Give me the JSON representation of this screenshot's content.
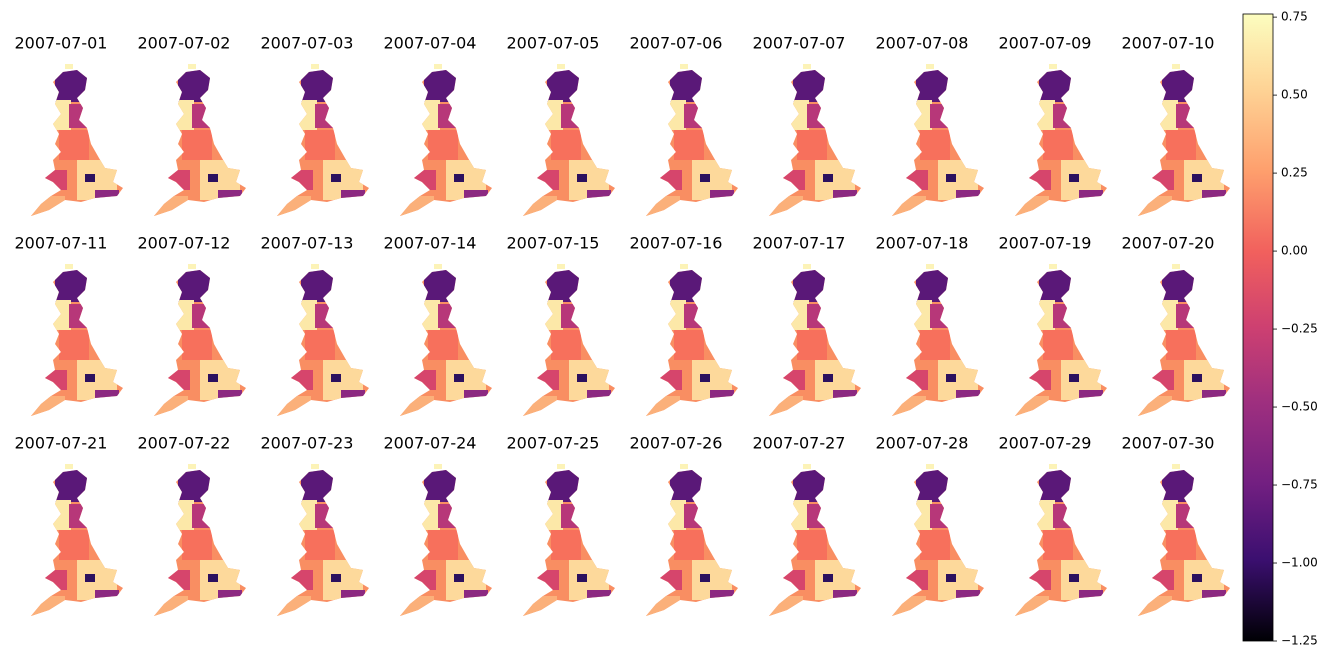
{
  "panels": [
    {
      "title": "2007-07-01"
    },
    {
      "title": "2007-07-02"
    },
    {
      "title": "2007-07-03"
    },
    {
      "title": "2007-07-04"
    },
    {
      "title": "2007-07-05"
    },
    {
      "title": "2007-07-06"
    },
    {
      "title": "2007-07-07"
    },
    {
      "title": "2007-07-08"
    },
    {
      "title": "2007-07-09"
    },
    {
      "title": "2007-07-10"
    },
    {
      "title": "2007-07-11"
    },
    {
      "title": "2007-07-12"
    },
    {
      "title": "2007-07-13"
    },
    {
      "title": "2007-07-14"
    },
    {
      "title": "2007-07-15"
    },
    {
      "title": "2007-07-16"
    },
    {
      "title": "2007-07-17"
    },
    {
      "title": "2007-07-18"
    },
    {
      "title": "2007-07-19"
    },
    {
      "title": "2007-07-20"
    },
    {
      "title": "2007-07-21"
    },
    {
      "title": "2007-07-22"
    },
    {
      "title": "2007-07-23"
    },
    {
      "title": "2007-07-24"
    },
    {
      "title": "2007-07-25"
    },
    {
      "title": "2007-07-26"
    },
    {
      "title": "2007-07-27"
    },
    {
      "title": "2007-07-28"
    },
    {
      "title": "2007-07-29"
    },
    {
      "title": "2007-07-30"
    }
  ],
  "colorbar": {
    "lim": [
      -1.25,
      0.76
    ],
    "ticks": [
      {
        "value": -1.25,
        "label": "−1.25"
      },
      {
        "value": -1.0,
        "label": "−1.00"
      },
      {
        "value": -0.75,
        "label": "−0.75"
      },
      {
        "value": -0.5,
        "label": "−0.50"
      },
      {
        "value": -0.25,
        "label": "−0.25"
      },
      {
        "value": 0.0,
        "label": "0.00"
      },
      {
        "value": 0.25,
        "label": "0.25"
      },
      {
        "value": 0.5,
        "label": "0.50"
      },
      {
        "value": 0.75,
        "label": "0.75"
      }
    ]
  }
}
